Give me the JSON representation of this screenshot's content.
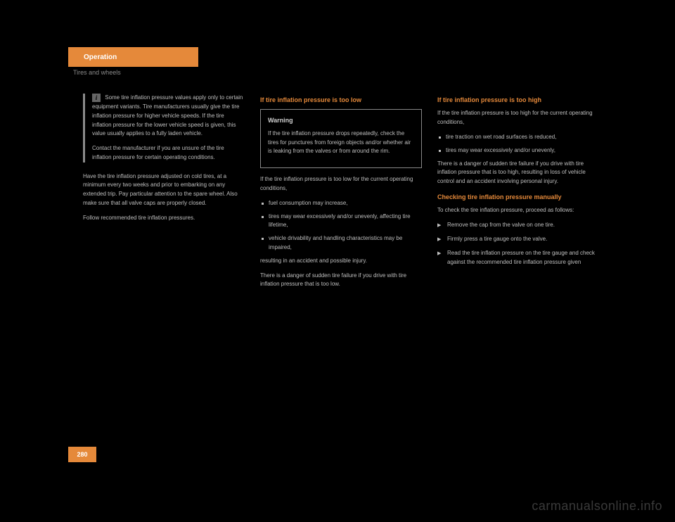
{
  "header": {
    "tab_label": "Operation",
    "subtitle": "Tires and wheels"
  },
  "page_number": "280",
  "watermark": "carmanualsonline.info",
  "col1": {
    "info1": "Some tire inflation pressure values apply only to certain equipment variants. Tire manufacturers usually give the tire inflation pressure for higher vehicle speeds. If the tire inflation pressure for the lower vehicle speed is given, this value usually applies to a fully laden vehicle.",
    "info2": "Contact the manufacturer if you are unsure of the tire inflation pressure for certain operating conditions.",
    "para1": "Have the tire inflation pressure adjusted on cold tires, at a minimum every two weeks and prior to embarking on any extended trip. Pay particular attention to the spare wheel. Also make sure that all valve caps are properly closed.",
    "para2": "Follow recommended tire inflation pressures."
  },
  "col2": {
    "heading": "If tire inflation pressure is too low",
    "warning_title": "Warning",
    "warning_body": "If the tire inflation pressure drops repeatedly, check the tires for punctures from foreign objects and/or whether air is leaking from the valves or from around the rim.",
    "para1": "If the tire inflation pressure is too low for the current operating conditions,",
    "bullets": [
      "fuel consumption may increase,",
      "tires may wear excessively and/or unevenly, affecting tire lifetime,",
      "vehicle drivability and handling characteristics may be impaired,"
    ],
    "para2": "resulting in an accident and possible injury.",
    "para3": "There is a danger of sudden tire failure if you drive with tire inflation pressure that is too low."
  },
  "col3": {
    "heading": "If tire inflation pressure is too high",
    "para1": "If the tire inflation pressure is too high for the current operating conditions,",
    "bullets_a": [
      "tire traction on wet road surfaces is reduced,",
      "tires may wear excessively and/or unevenly,"
    ],
    "para2": "There is a danger of sudden tire failure if you drive with tire inflation pressure that is too high, resulting in loss of vehicle control and an accident involving personal injury.",
    "action_heading": "Checking tire inflation pressure manually",
    "action_intro": "To check the tire inflation pressure, proceed as follows:",
    "actions": [
      "Remove the cap from the valve on one tire.",
      "Firmly press a tire gauge onto the valve.",
      "Read the tire inflation pressure on the tire gauge and check against the recommended tire inflation pressure given"
    ]
  },
  "colors": {
    "orange": "#e5893a",
    "bg": "#000000",
    "text": "#bfbfbf",
    "muted": "#8a8a8a"
  }
}
